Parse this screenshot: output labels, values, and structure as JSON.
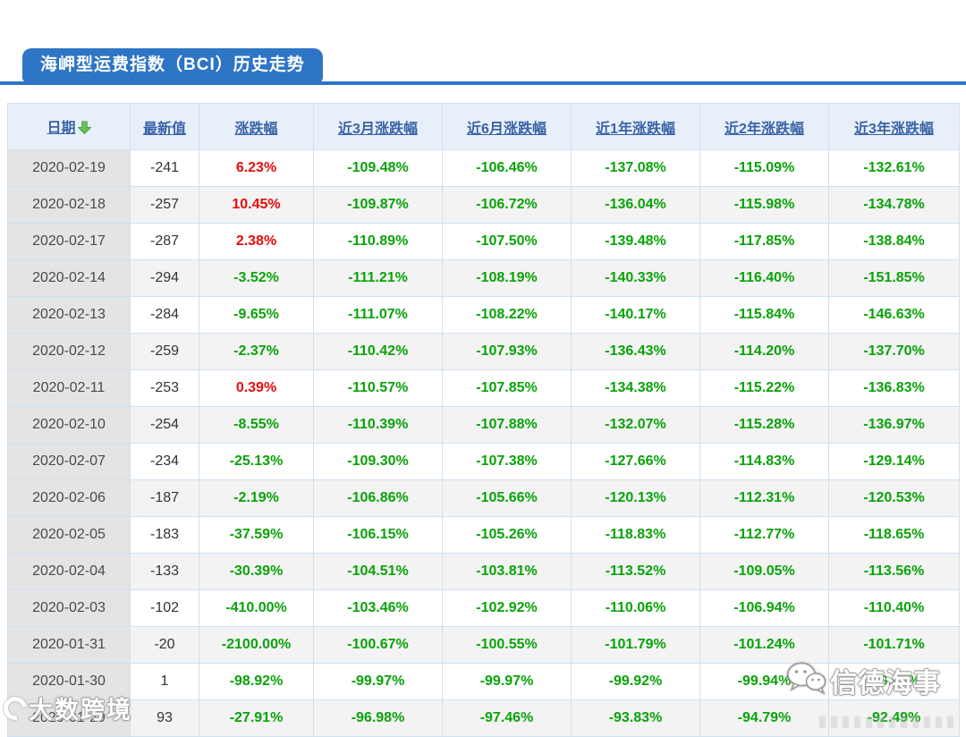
{
  "header": {
    "title": "海岬型运费指数（BCI）历史走势"
  },
  "table": {
    "columns": [
      {
        "key": "date",
        "label": "日期",
        "sorted_desc": true
      },
      {
        "key": "latest",
        "label": "最新值",
        "sorted_desc": false
      },
      {
        "key": "chg",
        "label": "涨跌幅",
        "sorted_desc": false
      },
      {
        "key": "chg3m",
        "label": "近3月涨跌幅",
        "sorted_desc": false
      },
      {
        "key": "chg6m",
        "label": "近6月涨跌幅",
        "sorted_desc": false
      },
      {
        "key": "chg1y",
        "label": "近1年涨跌幅",
        "sorted_desc": false
      },
      {
        "key": "chg2y",
        "label": "近2年涨跌幅",
        "sorted_desc": false
      },
      {
        "key": "chg3y",
        "label": "近3年涨跌幅",
        "sorted_desc": false
      }
    ],
    "rows": [
      {
        "date": "2020-02-19",
        "latest": "-241",
        "chg": "6.23%",
        "chg_dir": "up",
        "chg3m": "-109.48%",
        "chg6m": "-106.46%",
        "chg1y": "-137.08%",
        "chg2y": "-115.09%",
        "chg3y": "-132.61%"
      },
      {
        "date": "2020-02-18",
        "latest": "-257",
        "chg": "10.45%",
        "chg_dir": "up",
        "chg3m": "-109.87%",
        "chg6m": "-106.72%",
        "chg1y": "-136.04%",
        "chg2y": "-115.98%",
        "chg3y": "-134.78%"
      },
      {
        "date": "2020-02-17",
        "latest": "-287",
        "chg": "2.38%",
        "chg_dir": "up",
        "chg3m": "-110.89%",
        "chg6m": "-107.50%",
        "chg1y": "-139.48%",
        "chg2y": "-117.85%",
        "chg3y": "-138.84%"
      },
      {
        "date": "2020-02-14",
        "latest": "-294",
        "chg": "-3.52%",
        "chg_dir": "down",
        "chg3m": "-111.21%",
        "chg6m": "-108.19%",
        "chg1y": "-140.33%",
        "chg2y": "-116.40%",
        "chg3y": "-151.85%"
      },
      {
        "date": "2020-02-13",
        "latest": "-284",
        "chg": "-9.65%",
        "chg_dir": "down",
        "chg3m": "-111.07%",
        "chg6m": "-108.22%",
        "chg1y": "-140.17%",
        "chg2y": "-115.84%",
        "chg3y": "-146.63%"
      },
      {
        "date": "2020-02-12",
        "latest": "-259",
        "chg": "-2.37%",
        "chg_dir": "down",
        "chg3m": "-110.42%",
        "chg6m": "-107.93%",
        "chg1y": "-136.43%",
        "chg2y": "-114.20%",
        "chg3y": "-137.70%"
      },
      {
        "date": "2020-02-11",
        "latest": "-253",
        "chg": "0.39%",
        "chg_dir": "up",
        "chg3m": "-110.57%",
        "chg6m": "-107.85%",
        "chg1y": "-134.38%",
        "chg2y": "-115.22%",
        "chg3y": "-136.83%"
      },
      {
        "date": "2020-02-10",
        "latest": "-254",
        "chg": "-8.55%",
        "chg_dir": "down",
        "chg3m": "-110.39%",
        "chg6m": "-107.88%",
        "chg1y": "-132.07%",
        "chg2y": "-115.28%",
        "chg3y": "-136.97%"
      },
      {
        "date": "2020-02-07",
        "latest": "-234",
        "chg": "-25.13%",
        "chg_dir": "down",
        "chg3m": "-109.30%",
        "chg6m": "-107.38%",
        "chg1y": "-127.66%",
        "chg2y": "-114.83%",
        "chg3y": "-129.14%"
      },
      {
        "date": "2020-02-06",
        "latest": "-187",
        "chg": "-2.19%",
        "chg_dir": "down",
        "chg3m": "-106.86%",
        "chg6m": "-105.66%",
        "chg1y": "-120.13%",
        "chg2y": "-112.31%",
        "chg3y": "-120.53%"
      },
      {
        "date": "2020-02-05",
        "latest": "-183",
        "chg": "-37.59%",
        "chg_dir": "down",
        "chg3m": "-106.15%",
        "chg6m": "-105.26%",
        "chg1y": "-118.83%",
        "chg2y": "-112.77%",
        "chg3y": "-118.65%"
      },
      {
        "date": "2020-02-04",
        "latest": "-133",
        "chg": "-30.39%",
        "chg_dir": "down",
        "chg3m": "-104.51%",
        "chg6m": "-103.81%",
        "chg1y": "-113.52%",
        "chg2y": "-109.05%",
        "chg3y": "-113.56%"
      },
      {
        "date": "2020-02-03",
        "latest": "-102",
        "chg": "-410.00%",
        "chg_dir": "down",
        "chg3m": "-103.46%",
        "chg6m": "-102.92%",
        "chg1y": "-110.06%",
        "chg2y": "-106.94%",
        "chg3y": "-110.40%"
      },
      {
        "date": "2020-01-31",
        "latest": "-20",
        "chg": "-2100.00%",
        "chg_dir": "down",
        "chg3m": "-100.67%",
        "chg6m": "-100.55%",
        "chg1y": "-101.79%",
        "chg2y": "-101.24%",
        "chg3y": "-101.71%"
      },
      {
        "date": "2020-01-30",
        "latest": "1",
        "chg": "-98.92%",
        "chg_dir": "down",
        "chg3m": "-99.97%",
        "chg6m": "-99.97%",
        "chg1y": "-99.92%",
        "chg2y": "-99.94%",
        "chg3y": "-99.92%"
      },
      {
        "date": "2020-01-29",
        "latest": "93",
        "chg": "-27.91%",
        "chg_dir": "down",
        "chg3m": "-96.98%",
        "chg6m": "-97.46%",
        "chg1y": "-93.83%",
        "chg2y": "-94.79%",
        "chg3y": "-92.49%"
      }
    ]
  },
  "watermarks": {
    "bottom_left": {
      "text": "大数跨境",
      "icon": "ring-logo-icon"
    },
    "bottom_right": {
      "text": "信德海事",
      "icon": "wechat-icon"
    }
  },
  "colors": {
    "accent_blue": "#2e75c5",
    "header_link_blue": "#3a62a8",
    "up_red": "#e50d0d",
    "down_green": "#09a309",
    "header_bg": "#e7f0f9",
    "cell_border": "#cfe0f0",
    "date_cell_bg": "#e4e4e4",
    "stripe_bg": "#f3f3f3"
  }
}
